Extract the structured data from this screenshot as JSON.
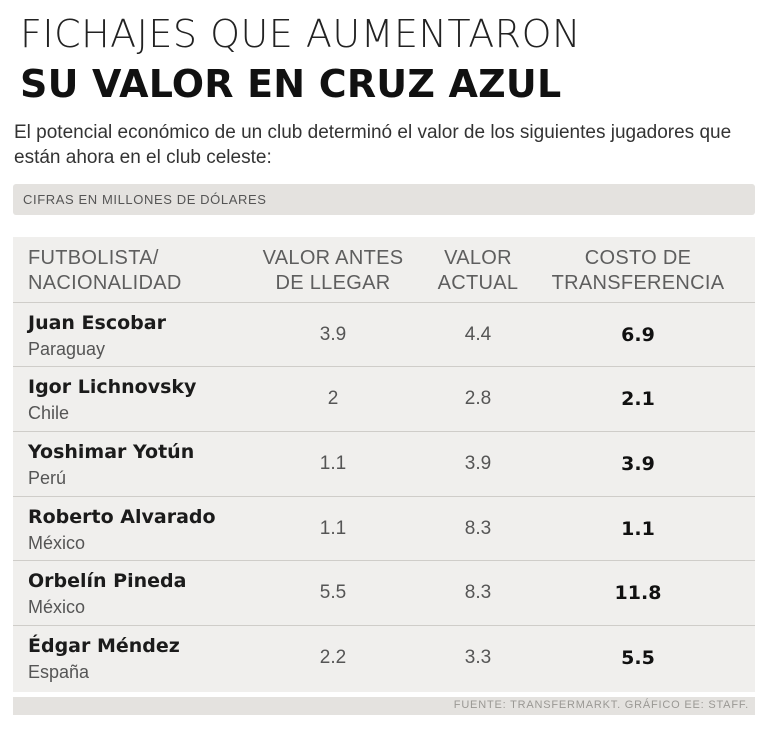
{
  "title": {
    "line1": "FICHAJES QUE AUMENTARON",
    "line2": "SU VALOR EN CRUZ AZUL"
  },
  "intro": "El potencial económico de un club determinó el valor de los siguientes jugadores que están ahora en el club celeste:",
  "units": "CIFRAS EN MILLONES DE DÓLARES",
  "headers": {
    "player_line1": "FUTBOLISTA/",
    "player_line2": "NACIONALIDAD",
    "before_line1": "VALOR ANTES",
    "before_line2": "DE LLEGAR",
    "actual_line1": "VALOR",
    "actual_line2": "ACTUAL",
    "cost_line1": "COSTO DE",
    "cost_line2": "TRANSFERENCIA"
  },
  "rows": [
    {
      "name": "Juan Escobar",
      "nationality": "Paraguay",
      "before": "3.9",
      "actual": "4.4",
      "cost": "6.9"
    },
    {
      "name": "Igor Lichnovsky",
      "nationality": "Chile",
      "before": "2",
      "actual": "2.8",
      "cost": "2.1"
    },
    {
      "name": "Yoshimar Yotún",
      "nationality": "Perú",
      "before": "1.1",
      "actual": "3.9",
      "cost": "3.9"
    },
    {
      "name": "Roberto Alvarado",
      "nationality": "México",
      "before": "1.1",
      "actual": "8.3",
      "cost": "1.1"
    },
    {
      "name": "Orbelín Pineda",
      "nationality": "México",
      "before": "5.5",
      "actual": "8.3",
      "cost": "11.8"
    },
    {
      "name": "Édgar Méndez",
      "nationality": "España",
      "before": "2.2",
      "actual": "3.3",
      "cost": "5.5"
    }
  ],
  "source": "FUENTE: TRANSFERMARKT. GRÁFICO EE: STAFF."
}
